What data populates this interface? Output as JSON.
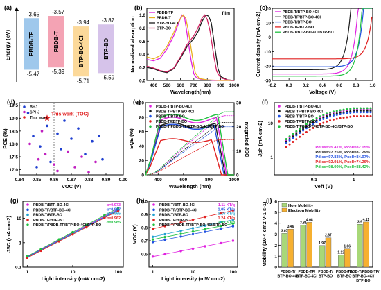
{
  "panels": [
    {
      "id": "a",
      "label": "(a)",
      "type": "energy-levels",
      "ylabel": "Energy (eV)",
      "materials": [
        {
          "name": "PBDB-TF",
          "lumo": -3.65,
          "homo": -5.47,
          "lumo_label": "-3.65",
          "homo_label": "-5.47",
          "color": "#9fc8ec"
        },
        {
          "name": "PBDB-T",
          "lumo": -3.57,
          "homo": -5.39,
          "lumo_label": "-3.57",
          "homo_label": "-5.39",
          "color": "#f4a3b4"
        },
        {
          "name": "BTP-BO-4Cl",
          "lumo": -3.94,
          "homo": -5.71,
          "lumo_label": "-3.94",
          "homo_label": "-5.71",
          "color": "#fcd99a"
        },
        {
          "name": "BTP-BO",
          "lumo": -3.87,
          "homo": -5.59,
          "lumo_label": "-3.87",
          "homo_label": "-5.59",
          "color": "#d6c3ea"
        }
      ]
    },
    {
      "id": "b",
      "label": "(b)",
      "type": "line",
      "xlabel": "Wavelength(nm)",
      "ylabel": "Normalized absorption",
      "xlim": [
        350,
        1000
      ],
      "ylim": [
        0,
        1.1
      ],
      "xticks": [
        400,
        500,
        600,
        700,
        800,
        900,
        1000
      ],
      "yticks": [
        0.0,
        0.2,
        0.4,
        0.6,
        0.8,
        1.0
      ],
      "yticklabels": [
        "0.0",
        "0.2",
        "0.4",
        "0.6",
        "0.8",
        "1.0"
      ],
      "annotation": "film",
      "legend": [
        "PBDB-TF",
        "PBDB-T",
        "BTP-BO-4Cl",
        "BTP-BO"
      ],
      "series": [
        {
          "name": "PBDB-TF",
          "color": "#e020e0",
          "x": [
            350,
            400,
            450,
            500,
            550,
            580,
            610,
            630,
            650,
            680,
            700,
            720,
            750,
            800,
            850,
            900,
            1000
          ],
          "y": [
            0.32,
            0.3,
            0.34,
            0.48,
            0.68,
            0.84,
            1.0,
            0.97,
            0.7,
            0.3,
            0.1,
            0.04,
            0.02,
            0.01,
            0.0,
            0.0,
            0.0
          ]
        },
        {
          "name": "PBDB-T",
          "color": "#e8b020",
          "x": [
            350,
            400,
            450,
            500,
            550,
            580,
            620,
            640,
            660,
            690,
            710,
            740,
            800,
            900,
            1000
          ],
          "y": [
            0.36,
            0.33,
            0.38,
            0.52,
            0.73,
            0.88,
            1.0,
            0.95,
            0.75,
            0.35,
            0.12,
            0.03,
            0.01,
            0.0,
            0.0
          ]
        },
        {
          "name": "BTP-BO-4Cl",
          "color": "#1a1a1a",
          "x": [
            350,
            400,
            450,
            500,
            550,
            600,
            650,
            700,
            730,
            760,
            790,
            810,
            830,
            860,
            880,
            900,
            950,
            1000
          ],
          "y": [
            0.2,
            0.18,
            0.14,
            0.12,
            0.18,
            0.34,
            0.52,
            0.64,
            0.74,
            0.9,
            1.0,
            0.98,
            0.88,
            0.45,
            0.18,
            0.06,
            0.01,
            0.0
          ]
        },
        {
          "name": "BTP-BO",
          "color": "#d02060",
          "x": [
            350,
            400,
            450,
            500,
            550,
            600,
            650,
            700,
            730,
            760,
            780,
            800,
            820,
            850,
            870,
            900,
            950,
            1000
          ],
          "y": [
            0.22,
            0.19,
            0.15,
            0.13,
            0.19,
            0.36,
            0.55,
            0.68,
            0.8,
            0.95,
            1.0,
            0.93,
            0.76,
            0.36,
            0.14,
            0.04,
            0.01,
            0.0
          ]
        }
      ]
    },
    {
      "id": "c",
      "label": "(c)",
      "type": "line",
      "xlabel": "Voltage (V)",
      "ylabel": "Current density (mA cm-2)",
      "xlim": [
        -0.2,
        1.0
      ],
      "ylim": [
        -30,
        20
      ],
      "xticks": [
        -0.2,
        0.0,
        0.2,
        0.4,
        0.6,
        0.8,
        1.0
      ],
      "xticklabels": [
        "-0.2",
        "0.0",
        "0.2",
        "0.4",
        "0.6",
        "0.8",
        "1.0"
      ],
      "yticks": [
        -30,
        -20,
        -10,
        0,
        10,
        20
      ],
      "legend": [
        "PBDB-T/BTP-BO-4Cl",
        "PBDB-TF/BTP-BO-4Cl",
        "PBDB-T/BTP-BO",
        "PBDB-TF/BTP-BO",
        "PBDB-T/BTP-BO-4Cl/BTP-BO"
      ],
      "series": [
        {
          "name": "PBDB-T/BTP-BO-4Cl",
          "color": "#e020e0",
          "jsc": -25.5,
          "voc": 0.79
        },
        {
          "name": "PBDB-TF/BTP-BO-4Cl",
          "color": "#1a1a1a",
          "jsc": -22.5,
          "voc": 0.7
        },
        {
          "name": "PBDB-T/BTP-BO",
          "color": "#2050e0",
          "jsc": -20.5,
          "voc": 0.85
        },
        {
          "name": "PBDB-TF/BTP-BO",
          "color": "#e02020",
          "jsc": -15.0,
          "voc": 0.95
        },
        {
          "name": "PBDB-T/BTP-BO-4Cl/BTP-BO",
          "color": "#20c040",
          "jsc": -27.0,
          "voc": 0.84
        }
      ]
    },
    {
      "id": "d",
      "label": "(d)",
      "type": "scatter",
      "xlabel": "VOC (V)",
      "ylabel": "PCE (%)",
      "xlim": [
        0.84,
        0.9
      ],
      "ylim": [
        16.8,
        19.6
      ],
      "xticks": [
        0.84,
        0.85,
        0.86,
        0.87,
        0.88,
        0.89,
        0.9
      ],
      "xticklabels": [
        "0.84",
        "0.85",
        "0.86",
        "0.87",
        "0.88",
        "0.89",
        "0.90"
      ],
      "yticks": [
        17.0,
        17.5,
        18.0,
        18.5,
        19.0,
        19.5
      ],
      "yticklabels": [
        "17.0",
        "17.5",
        "18.0",
        "18.5",
        "19.0",
        "19.5"
      ],
      "legend": [
        "BHJ",
        "SPHJ",
        "This work"
      ],
      "annotation": "This work (TOC)",
      "series": [
        {
          "name": "BHJ",
          "color": "#2040d0",
          "marker": "circle",
          "points": [
            [
              0.845,
              19.2
            ],
            [
              0.848,
              18.3
            ],
            [
              0.852,
              17.9
            ],
            [
              0.856,
              18.7
            ],
            [
              0.862,
              18.4
            ],
            [
              0.866,
              18.9
            ],
            [
              0.87,
              18.2
            ],
            [
              0.874,
              18.6
            ],
            [
              0.878,
              17.6
            ],
            [
              0.882,
              18.1
            ],
            [
              0.886,
              18.3
            ],
            [
              0.888,
              17.4
            ],
            [
              0.858,
              17.3
            ],
            [
              0.85,
              17.1
            ],
            [
              0.864,
              17.8
            ]
          ]
        },
        {
          "name": "SPHJ",
          "color": "#c020c0",
          "marker": "circle",
          "points": [
            [
              0.846,
              18.0
            ],
            [
              0.851,
              17.4
            ],
            [
              0.855,
              17.6
            ],
            [
              0.86,
              17.2
            ],
            [
              0.868,
              17.7
            ],
            [
              0.872,
              17.1
            ],
            [
              0.876,
              17.5
            ],
            [
              0.88,
              16.9
            ],
            [
              0.884,
              17.3
            ],
            [
              0.853,
              18.5
            ],
            [
              0.862,
              16.95
            ]
          ]
        },
        {
          "name": "This work",
          "color": "#e02020",
          "marker": "star",
          "points": [
            [
              0.856,
              19.0
            ]
          ]
        }
      ]
    },
    {
      "id": "e",
      "label": "(e)",
      "type": "line",
      "xlabel": "Wavelength (nm)",
      "ylabel": "EQE (%)",
      "ylabel2": "integrated JSC",
      "xlim": [
        300,
        1000
      ],
      "ylim": [
        0,
        100
      ],
      "y2lim": [
        0,
        30
      ],
      "xticks": [
        400,
        600,
        800,
        1000
      ],
      "yticks": [
        0,
        20,
        40,
        60,
        80,
        100
      ],
      "y2ticks": [
        0,
        10,
        20,
        30
      ],
      "legend": [
        "PBDB-T/BTP-BO-4Cl",
        "PBDB-TF/BTP-BO-4Cl",
        "PBDB-T/BTP-BO",
        "PBDB-TF/BTP-BO",
        "PBDB-T/PBDB-TF/BTP-BO-4Cl/BTP-BO"
      ],
      "series": [
        {
          "name": "PBDB-T/BTP-BO-4Cl",
          "color": "#e020e0",
          "eqe_max": 80,
          "edge": 920,
          "jsc_int": 24.6
        },
        {
          "name": "PBDB-TF/BTP-BO-4Cl",
          "color": "#1a1a1a",
          "eqe_max": 72,
          "edge": 910,
          "jsc_int": 21.8
        },
        {
          "name": "PBDB-T/BTP-BO",
          "color": "#2050e0",
          "eqe_max": 70,
          "edge": 900,
          "jsc_int": 20.0
        },
        {
          "name": "PBDB-TF/BTP-BO",
          "color": "#e02020",
          "eqe_max": 50,
          "edge": 880,
          "jsc_int": 14.6
        },
        {
          "name": "PBDB-T/PBDB-TF/BTP-BO-4Cl/BTP-BO",
          "color": "#20c040",
          "eqe_max": 84,
          "edge": 930,
          "jsc_int": 26.3
        }
      ]
    },
    {
      "id": "f",
      "label": "(f)",
      "type": "scatter",
      "xlabel": "Veff (V)",
      "ylabel": "Jph (mA cm-2)",
      "xlim": [
        0.01,
        3
      ],
      "ylim": [
        0.3,
        40
      ],
      "xscale": "log",
      "yscale": "log",
      "xticks": [
        0.1,
        1
      ],
      "xticklabels": [
        "0.1",
        "1"
      ],
      "yticks": [
        1,
        10
      ],
      "yticklabels": [
        "1",
        "10"
      ],
      "legend": [
        "PBDB-T/BTP-BO-4Cl",
        "PBDB-TF/BTP-BO-4Cl",
        "PBDB-T/BTP-BO",
        "PBDB-TF/BTP-BO",
        "PBDB-T/PBDB-TF/BTP-BO-4Cl/BTP-BO"
      ],
      "annotations": [
        "Pdiss=95.41%, Pcoll=82.05%",
        "Pdiss=97.25%, Pcoll=87.29%",
        "Pdiss=97.83%, Pcoll=84.97%",
        "Pdiss=92.91%, Pcoll=74.26%",
        "Pdiss=98.09%, Pcoll=88.42%"
      ],
      "series": [
        {
          "name": "PBDB-T/BTP-BO-4Cl",
          "color": "#e020e0",
          "jsat": 26.0
        },
        {
          "name": "PBDB-TF/BTP-BO-4Cl",
          "color": "#1a1a1a",
          "jsat": 23.0
        },
        {
          "name": "PBDB-T/BTP-BO",
          "color": "#2050e0",
          "jsat": 21.0
        },
        {
          "name": "PBDB-TF/BTP-BO",
          "color": "#e02020",
          "jsat": 16.0
        },
        {
          "name": "PBDB-T/PBDB-TF/BTP-BO-4Cl/BTP-BO",
          "color": "#20c040",
          "jsat": 27.5
        }
      ]
    },
    {
      "id": "g",
      "label": "(g)",
      "type": "scatter",
      "xlabel": "Light intensity (mW cm-2)",
      "ylabel": "JSC (mA cm-2)",
      "xlim": [
        0.8,
        130
      ],
      "ylim": [
        0.1,
        50
      ],
      "xscale": "log",
      "yscale": "log",
      "xticks": [
        1,
        10,
        100
      ],
      "xticklabels": [
        "1",
        "10",
        "100"
      ],
      "yticks": [
        0.1,
        1,
        10
      ],
      "yticklabels": [
        "0.1",
        "1",
        "10"
      ],
      "legend": [
        "PBDB-T/BTP-BO-4Cl",
        "PBDB-TF/BTP-BO-4Cl",
        "PBDB-T/BTP-BO",
        "PBDB-TF/BTP-BO",
        "PBDB-T/PBDB-TF/BTP-BO-4Cl/BTP-BO"
      ],
      "alpha_labels": [
        "α=0.973",
        "α=0.967",
        "α=0.965",
        "α=0.962",
        "α=0.985"
      ],
      "series": [
        {
          "name": "PBDB-T/BTP-BO-4Cl",
          "color": "#e020e0",
          "alpha": 0.973,
          "j1": 0.27
        },
        {
          "name": "PBDB-TF/BTP-BO-4Cl",
          "color": "#2050e0",
          "alpha": 0.967,
          "j1": 0.26
        },
        {
          "name": "PBDB-T/BTP-BO",
          "color": "#20a0d0",
          "alpha": 0.965,
          "j1": 0.25
        },
        {
          "name": "PBDB-TF/BTP-BO",
          "color": "#e02020",
          "alpha": 0.962,
          "j1": 0.24
        },
        {
          "name": "PBDB-T/PBDB-TF/BTP-BO-4Cl/BTP-BO",
          "color": "#20c040",
          "alpha": 0.985,
          "j1": 0.28
        }
      ]
    },
    {
      "id": "h",
      "label": "(h)",
      "type": "scatter",
      "xlabel": "Light intensity (mW cm-2)",
      "ylabel": "VOC (V)",
      "xlim": [
        0.8,
        130
      ],
      "ylim": [
        0.5,
        1.0
      ],
      "xscale": "log",
      "xticks": [
        1,
        10,
        100
      ],
      "xticklabels": [
        "1",
        "10",
        "100"
      ],
      "yticks": [
        0.6,
        0.7,
        0.8,
        0.9,
        1.0
      ],
      "yticklabels": [
        "0.6",
        "0.7",
        "0.8",
        "0.9",
        "1.0"
      ],
      "legend": [
        "PBDB-T/BTP-BO-4Cl",
        "PBDB-TF/BTP-BO-4Cl",
        "PBDB-T/BTP-BO",
        "PBDB-TF/BTP-BO",
        "PBDB-T/PBDB-TF/BTP-BO-4Cl/BTP-BO"
      ],
      "slope_labels": [
        "1.11 KT/q",
        "1.05 KT/q",
        "1.16 KT/q",
        "1.24 KT/q",
        "1.03 KT/q"
      ],
      "series": [
        {
          "name": "PBDB-T/BTP-BO-4Cl",
          "color": "#e020e0",
          "v1": 0.58,
          "v100": 0.7
        },
        {
          "name": "PBDB-TF/BTP-BO-4Cl",
          "color": "#2050e0",
          "v1": 0.69,
          "v100": 0.81
        },
        {
          "name": "PBDB-T/BTP-BO",
          "color": "#20a0d0",
          "v1": 0.73,
          "v100": 0.86
        },
        {
          "name": "PBDB-TF/BTP-BO",
          "color": "#e02020",
          "v1": 0.79,
          "v100": 0.93
        },
        {
          "name": "PBDB-T/PBDB-TF/BTP-BO-4Cl/BTP-BO",
          "color": "#20c040",
          "v1": 0.71,
          "v100": 0.83
        }
      ]
    },
    {
      "id": "i",
      "label": "(i)",
      "type": "bar",
      "ylabel": "Mobility (10-4 cm2 V-1 s-1)",
      "ylim": [
        0,
        6
      ],
      "yticks": [
        0,
        1,
        2,
        3,
        4,
        5,
        6
      ],
      "legend": [
        "Hole Mobility",
        "Electron Mobility"
      ],
      "categories": [
        "PBDB-T/ BTP-BO-4Cl",
        "PBDB-TF/ BTP-BO-4Cl",
        "PBDB-T/ BTP-BO",
        "PBDB-TF/ BTP-BO",
        "PBDB-T/PBDB-TF/ BTP-BO-4Cl/ BTP-BO"
      ],
      "series": [
        {
          "name": "Hole Mobility",
          "color": "#a8d878",
          "values": [
            3.07,
            3.81,
            1.97,
            1.12,
            3.9
          ],
          "labels": [
            "3.07",
            "3.81",
            "1.97",
            "1.12",
            "3.9"
          ]
        },
        {
          "name": "Electron Mobility",
          "color": "#f6b030",
          "values": [
            3.46,
            4.08,
            2.67,
            1.66,
            4.11
          ],
          "labels": [
            "3.46",
            "4.08",
            "2.67",
            "1.66",
            "4.11"
          ]
        }
      ]
    }
  ]
}
